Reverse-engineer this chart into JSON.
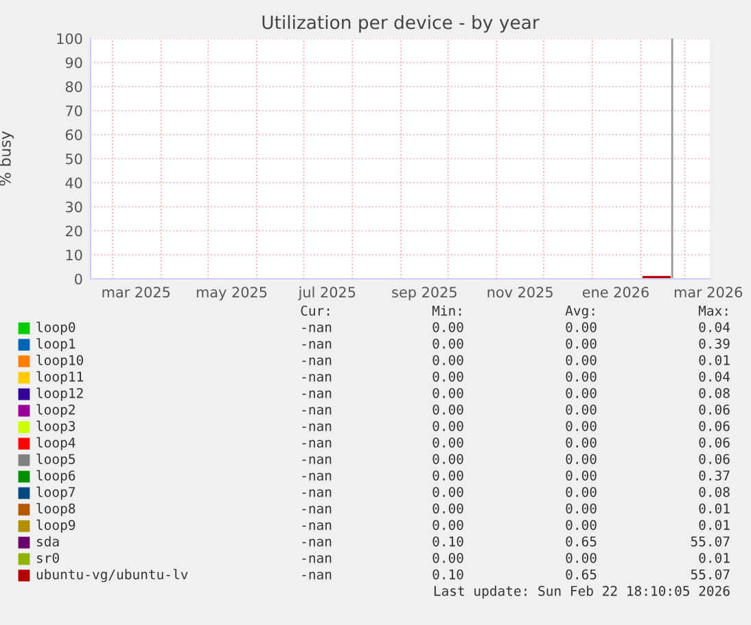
{
  "chart_data": {
    "type": "line",
    "title": "Utilization per device - by year",
    "ylabel": "% busy",
    "x": [
      "2026-02-02",
      "2026-02-20"
    ],
    "series": [
      {
        "name": "loop0",
        "color": "#00cc00",
        "values": [
          null,
          null
        ]
      },
      {
        "name": "loop1",
        "color": "#0066b3",
        "values": [
          null,
          null
        ]
      },
      {
        "name": "loop10",
        "color": "#ff8000",
        "values": [
          null,
          null
        ]
      },
      {
        "name": "loop11",
        "color": "#ffcc00",
        "values": [
          null,
          null
        ]
      },
      {
        "name": "loop12",
        "color": "#330099",
        "values": [
          null,
          null
        ]
      },
      {
        "name": "loop2",
        "color": "#990099",
        "values": [
          null,
          null
        ]
      },
      {
        "name": "loop3",
        "color": "#ccff00",
        "values": [
          null,
          null
        ]
      },
      {
        "name": "loop4",
        "color": "#ff0000",
        "values": [
          null,
          null
        ]
      },
      {
        "name": "loop5",
        "color": "#808080",
        "values": [
          null,
          null
        ]
      },
      {
        "name": "loop6",
        "color": "#008f00",
        "values": [
          null,
          null
        ]
      },
      {
        "name": "loop7",
        "color": "#00487d",
        "values": [
          null,
          null
        ]
      },
      {
        "name": "loop8",
        "color": "#b35a00",
        "values": [
          null,
          null
        ]
      },
      {
        "name": "loop9",
        "color": "#b38f00",
        "values": [
          null,
          null
        ]
      },
      {
        "name": "sda",
        "color": "#6b006b",
        "values": [
          null,
          null
        ]
      },
      {
        "name": "sr0",
        "color": "#8fb300",
        "values": [
          null,
          null
        ]
      },
      {
        "name": "ubuntu-vg/ubuntu-lv",
        "color": "#b30000",
        "values": [
          0.6,
          0.6
        ]
      }
    ],
    "xlim": [
      "2025-02-15",
      "2026-03-17"
    ],
    "xticks": [
      {
        "value": "2025-03-01",
        "label": null
      },
      {
        "value": "2025-03-16",
        "label": "mar 2025"
      },
      {
        "value": "2025-04-01",
        "label": null
      },
      {
        "value": "2025-05-01",
        "label": null
      },
      {
        "value": "2025-05-16",
        "label": "may 2025"
      },
      {
        "value": "2025-06-01",
        "label": null
      },
      {
        "value": "2025-07-01",
        "label": null
      },
      {
        "value": "2025-07-16",
        "label": "jul 2025"
      },
      {
        "value": "2025-08-01",
        "label": null
      },
      {
        "value": "2025-09-01",
        "label": null
      },
      {
        "value": "2025-09-16",
        "label": "sep 2025"
      },
      {
        "value": "2025-10-01",
        "label": null
      },
      {
        "value": "2025-11-01",
        "label": null
      },
      {
        "value": "2025-11-16",
        "label": "nov 2025"
      },
      {
        "value": "2025-12-01",
        "label": null
      },
      {
        "value": "2026-01-01",
        "label": null
      },
      {
        "value": "2026-01-16",
        "label": "ene 2026"
      },
      {
        "value": "2026-02-01",
        "label": null
      },
      {
        "value": "2026-03-01",
        "label": null
      },
      {
        "value": "2026-03-16",
        "label": "mar 2026"
      }
    ],
    "ylim": [
      0,
      100
    ],
    "yticks": [
      0,
      10,
      20,
      30,
      40,
      50,
      60,
      70,
      80,
      90,
      100
    ],
    "grid": true,
    "legend": "bottom",
    "line_style": "solid",
    "marker": "none",
    "ref_lines": [
      {
        "axis": "x",
        "value": "2026-02-21",
        "color": "#999999"
      }
    ],
    "annotations": [
      "Cur: Min: Avg: Max:",
      "-nan 0.00 0.00 0.04",
      "-nan 0.00 0.00 0.39",
      "-nan 0.00 0.00 0.01",
      "-nan 0.00 0.00 0.04",
      "-nan 0.00 0.00 0.08",
      "-nan 0.00 0.00 0.06",
      "-nan 0.00 0.00 0.06",
      "-nan 0.00 0.00 0.06",
      "-nan 0.00 0.00 0.06",
      "-nan 0.00 0.00 0.37",
      "-nan 0.00 0.00 0.08",
      "-nan 0.00 0.00 0.01",
      "-nan 0.00 0.00 0.01",
      "-nan 0.10 0.65 55.07",
      "-nan 0.00 0.00 0.01",
      "-nan 0.10 0.65 55.07",
      "Last update: Sun Feb 22 18:10:05 2026"
    ]
  }
}
